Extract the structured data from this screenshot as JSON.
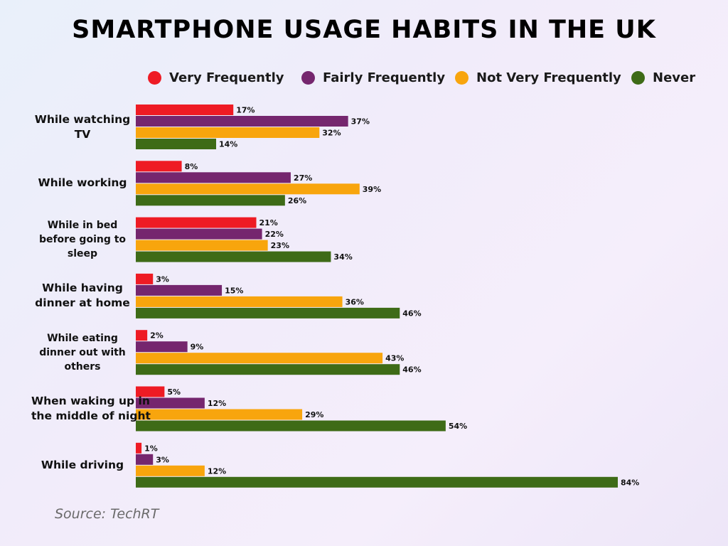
{
  "title": "SMARTPHONE USAGE HABITS IN THE UK",
  "source": "Source: TechRT",
  "chart_data": {
    "type": "bar",
    "orientation": "horizontal",
    "title": "SMARTPHONE USAGE HABITS IN THE UK",
    "legend_position": "top",
    "grid": false,
    "categories": [
      [
        "While watching",
        "TV"
      ],
      [
        "While working"
      ],
      [
        "While in bed",
        "before going to",
        "sleep"
      ],
      [
        "While having",
        "dinner at home"
      ],
      [
        "While eating",
        "dinner out with",
        "others"
      ],
      [
        "When waking up in",
        "the middle of night"
      ],
      [
        "While driving"
      ]
    ],
    "series": [
      {
        "name": "Very Frequently",
        "color": "#ee1b24",
        "values": [
          17,
          8,
          21,
          3,
          2,
          5,
          1
        ]
      },
      {
        "name": "Fairly Frequently",
        "color": "#75266e",
        "values": [
          37,
          27,
          22,
          15,
          9,
          12,
          3
        ]
      },
      {
        "name": "Not Very Frequently",
        "color": "#f8a50d",
        "values": [
          32,
          39,
          23,
          36,
          43,
          29,
          12
        ]
      },
      {
        "name": "Never",
        "color": "#3e6b17",
        "values": [
          14,
          26,
          34,
          46,
          46,
          54,
          84
        ]
      }
    ],
    "value_suffix": "%",
    "xlim": [
      0,
      100
    ]
  }
}
